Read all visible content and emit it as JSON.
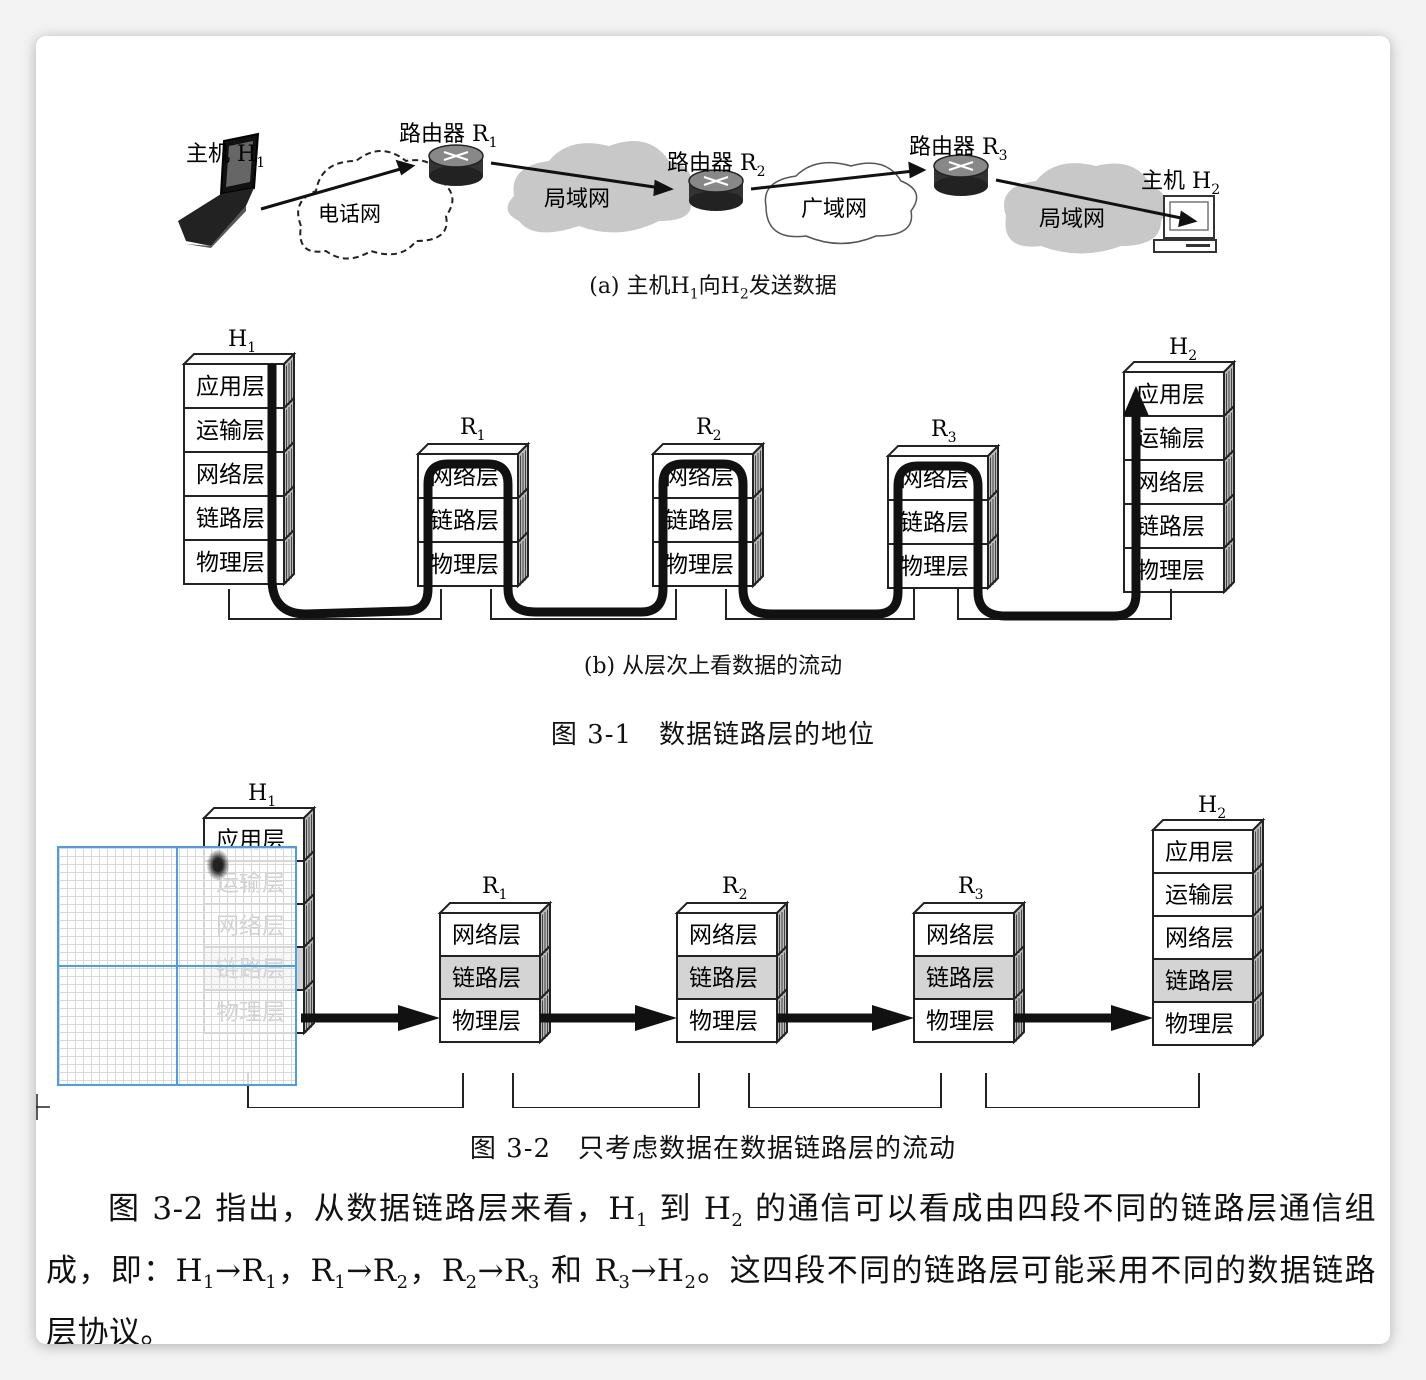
{
  "fig_a": {
    "host1": "主机 H",
    "host1_sub": "1",
    "host2": "主机 H",
    "host2_sub": "2",
    "router1": "路由器 R",
    "router1_sub": "1",
    "router2": "路由器 R",
    "router2_sub": "2",
    "router3": "路由器 R",
    "router3_sub": "3",
    "cloud_phone": "电话网",
    "cloud_lan1": "局域网",
    "cloud_wan": "广域网",
    "cloud_lan2": "局域网",
    "caption_pre": "(a) 主机H",
    "caption_s1": "1",
    "caption_mid": "向H",
    "caption_s2": "2",
    "caption_post": "发送数据"
  },
  "fig_b": {
    "h1": "H",
    "h1_sub": "1",
    "h2": "H",
    "h2_sub": "2",
    "r1": "R",
    "r1_sub": "1",
    "r2": "R",
    "r2_sub": "2",
    "r3": "R",
    "r3_sub": "3",
    "layers_host": [
      "应用层",
      "运输层",
      "网络层",
      "链路层",
      "物理层"
    ],
    "layers_router": [
      "网络层",
      "链路层",
      "物理层"
    ],
    "caption": "(b) 从层次上看数据的流动"
  },
  "fig31_caption": "图 3-1　数据链路层的地位",
  "fig32": {
    "h1": "H",
    "h1_sub": "1",
    "h2": "H",
    "h2_sub": "2",
    "r1": "R",
    "r1_sub": "1",
    "r2": "R",
    "r2_sub": "2",
    "r3": "R",
    "r3_sub": "3",
    "layers_host": [
      "应用层",
      "运输层",
      "网络层",
      "链路层",
      "物理层"
    ],
    "layers_router": [
      "网络层",
      "链路层",
      "物理层"
    ],
    "highlight_color": "#d4d4d4",
    "caption": "图 3-2　只考虑数据在数据链路层的流动"
  },
  "paragraph": {
    "t1": "图 3-2 指出，从数据链路层来看，H",
    "s1": "1",
    "t2": " 到 H",
    "s2": "2",
    "t3": " 的通信可以看成由四段不同的链路层通信组成，即：H",
    "s3": "1",
    "t4": "→R",
    "s4": "1",
    "t5": "，R",
    "s5": "1",
    "t6": "→R",
    "s6": "2",
    "t7": "，R",
    "s7": "2",
    "t8": "→R",
    "s8": "3",
    "t9": " 和 R",
    "s9": "3",
    "t10": "→H",
    "s10": "2",
    "t11": "。这四段不同的链路层可能采用不同的数据链路层协议。"
  },
  "overlay": {
    "grid_color": "#4a9ee8",
    "icons": [
      "magnifier-grid-overlay",
      "crosshair-icon"
    ]
  }
}
